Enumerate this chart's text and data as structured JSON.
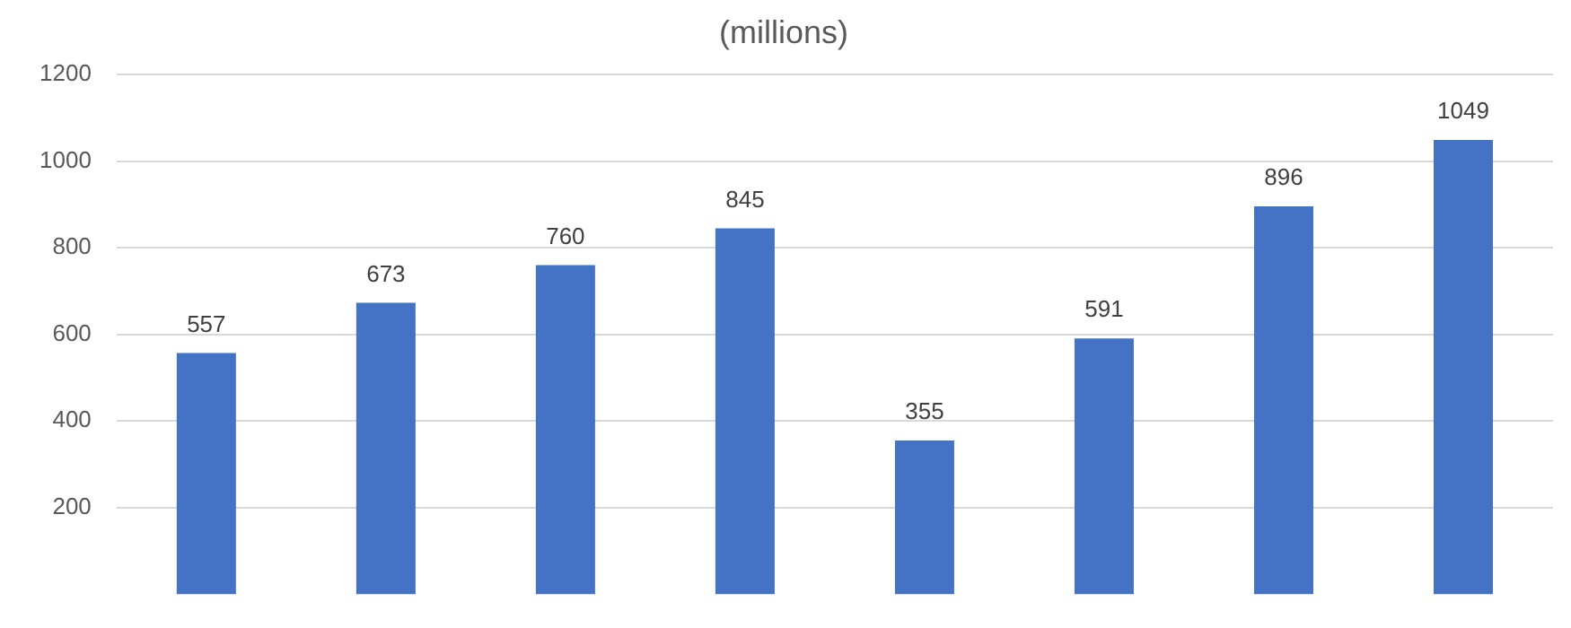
{
  "chart_data": {
    "type": "bar",
    "title": "(millions)",
    "categories": [
      null,
      null,
      null,
      null,
      null,
      null,
      null,
      null
    ],
    "values": [
      557,
      673,
      760,
      845,
      355,
      591,
      896,
      1049
    ],
    "color": "#4472c4",
    "ylim": [
      0,
      1200
    ],
    "yticks": [
      200,
      400,
      600,
      800,
      1000,
      1200
    ],
    "grid": "y",
    "data_labels": true
  }
}
